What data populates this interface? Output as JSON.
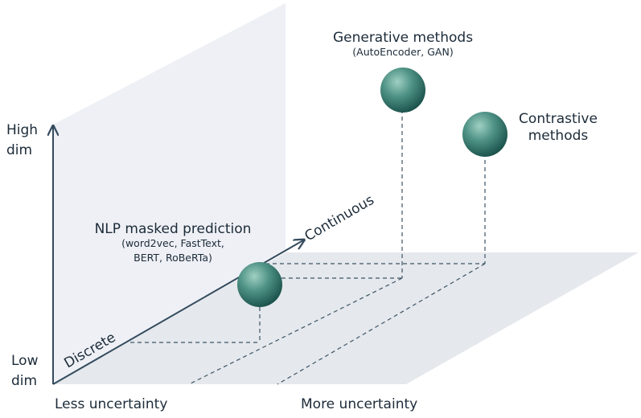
{
  "axes": {
    "y_high_line1": "High",
    "y_high_line2": "dim",
    "y_low_line1": "Low",
    "y_low_line2": "dim",
    "x_left": "Less uncertainty",
    "x_right": "More uncertainty",
    "z_near": "Discrete",
    "z_far": "Continuous"
  },
  "points": {
    "nlp": {
      "title": "NLP masked prediction",
      "sub1": "(word2vec, FastText,",
      "sub2": "BERT, RoBeRTa)"
    },
    "generative": {
      "title": "Generative methods",
      "sub1": "(AutoEncoder, GAN)"
    },
    "contrastive": {
      "line1": "Contrastive",
      "line2": "methods"
    }
  },
  "colors": {
    "back_wall": "#eef0f5",
    "floor": "#e5e8ec",
    "axis": "#344b5e",
    "sphere_light": "#8fc4b7",
    "sphere_dark": "#1b5a52"
  }
}
